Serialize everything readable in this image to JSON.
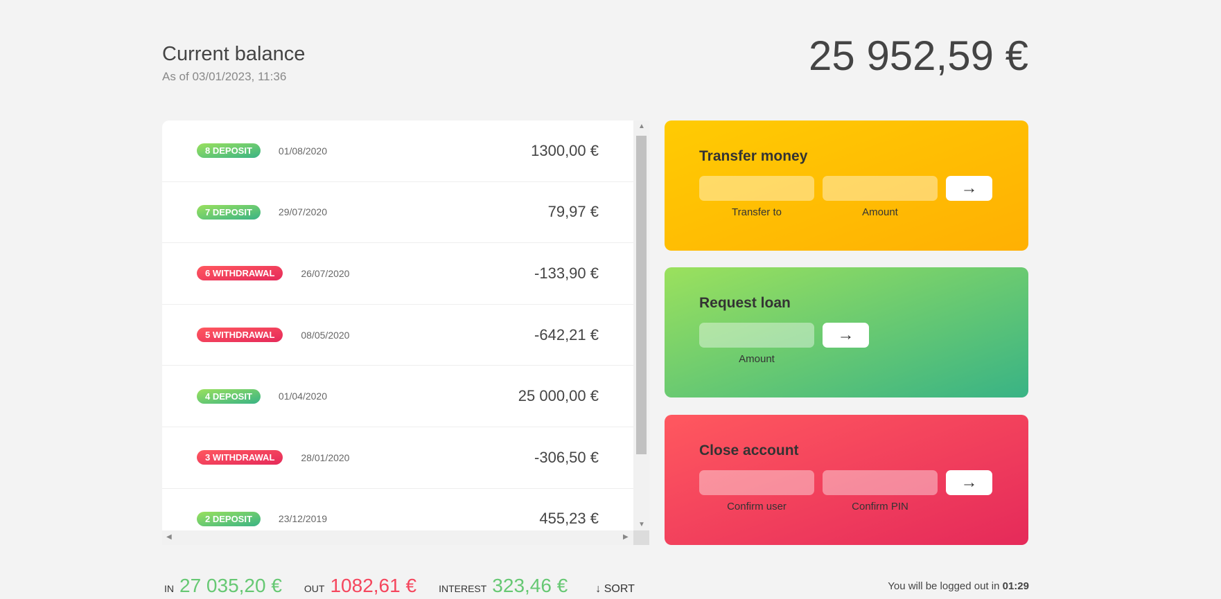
{
  "header": {
    "title": "Current balance",
    "as_of": "As of 03/01/2023, 11:36",
    "balance": "25 952,59 €"
  },
  "movements": [
    {
      "label": "8 deposit",
      "type": "deposit",
      "date": "01/08/2020",
      "value": "1300,00 €"
    },
    {
      "label": "7 deposit",
      "type": "deposit",
      "date": "29/07/2020",
      "value": "79,97 €"
    },
    {
      "label": "6 withdrawal",
      "type": "withdrawal",
      "date": "26/07/2020",
      "value": "-133,90 €"
    },
    {
      "label": "5 withdrawal",
      "type": "withdrawal",
      "date": "08/05/2020",
      "value": "-642,21 €"
    },
    {
      "label": "4 deposit",
      "type": "deposit",
      "date": "01/04/2020",
      "value": "25 000,00 €"
    },
    {
      "label": "3 withdrawal",
      "type": "withdrawal",
      "date": "28/01/2020",
      "value": "-306,50 €"
    },
    {
      "label": "2 deposit",
      "type": "deposit",
      "date": "23/12/2019",
      "value": "455,23 €"
    }
  ],
  "operations": {
    "transfer": {
      "title": "Transfer money",
      "to_label": "Transfer to",
      "amount_label": "Amount",
      "button": "→",
      "color": "#ffb003"
    },
    "loan": {
      "title": "Request loan",
      "amount_label": "Amount",
      "button": "→",
      "color": "#39b385"
    },
    "close": {
      "title": "Close account",
      "user_label": "Confirm user",
      "pin_label": "Confirm PIN",
      "button": "→",
      "color": "#e52a5a"
    }
  },
  "summary": {
    "in_label": "In",
    "in": "27 035,20 €",
    "out_label": "Out",
    "out": "1082,61 €",
    "interest_label": "Interest",
    "interest": "323,46 €",
    "sort": "↓ SORT"
  },
  "logout": {
    "text": "You will be logged out in ",
    "time": "01:29"
  },
  "colors": {
    "positive": "#66c873",
    "negative": "#f5465d"
  }
}
